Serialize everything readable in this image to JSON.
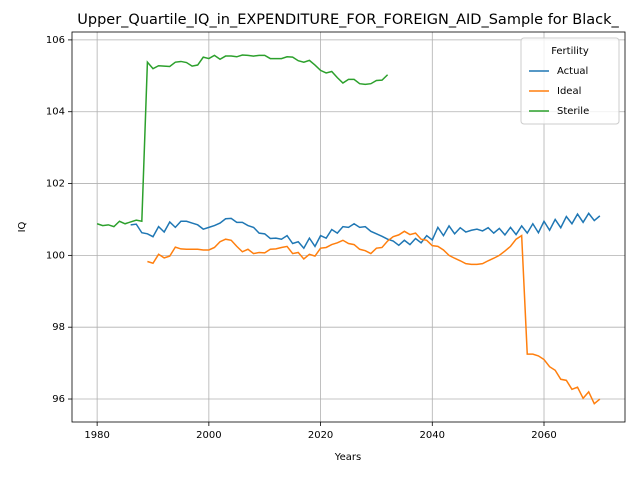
{
  "chart_data": {
    "type": "line",
    "title": "Upper_Quartile_IQ_in_EXPENDITURE_FOR_FOREIGN_AID_Sample for Black_",
    "x_label": "Years",
    "y_label": "IQ",
    "legend_title": "Fertility",
    "legend_position": "upper right",
    "grid": true,
    "xlim": [
      1975.5,
      2074.5
    ],
    "xticks": [
      1980,
      2000,
      2020,
      2040,
      2060
    ],
    "ylim": [
      95.36,
      106.22
    ],
    "yticks": [
      96,
      98,
      100,
      102,
      104,
      106
    ],
    "x": [
      1980,
      1981,
      1982,
      1983,
      1984,
      1985,
      1986,
      1987,
      1988,
      1989,
      1990,
      1991,
      1992,
      1993,
      1994,
      1995,
      1996,
      1997,
      1998,
      1999,
      2000,
      2001,
      2002,
      2003,
      2004,
      2005,
      2006,
      2007,
      2008,
      2009,
      2010,
      2011,
      2012,
      2013,
      2014,
      2015,
      2016,
      2017,
      2018,
      2019,
      2020,
      2021,
      2022,
      2023,
      2024,
      2025,
      2026,
      2027,
      2028,
      2029,
      2030,
      2031,
      2032,
      2033,
      2034,
      2035,
      2036,
      2037,
      2038,
      2039,
      2040,
      2041,
      2042,
      2043,
      2044,
      2045,
      2046,
      2047,
      2048,
      2049,
      2050,
      2051,
      2052,
      2053,
      2054,
      2055,
      2056,
      2057,
      2058,
      2059,
      2060,
      2061,
      2062,
      2063,
      2064,
      2065,
      2066,
      2067,
      2068,
      2069,
      2070
    ],
    "series": [
      {
        "name": "Actual",
        "color": "#1f77b4",
        "values": [
          null,
          null,
          null,
          null,
          null,
          null,
          100.85,
          100.87,
          100.63,
          100.6,
          100.52,
          100.8,
          100.65,
          100.93,
          100.78,
          100.95,
          100.95,
          100.9,
          100.85,
          100.73,
          100.78,
          100.83,
          100.9,
          101.02,
          101.03,
          100.92,
          100.92,
          100.83,
          100.78,
          100.62,
          100.6,
          100.47,
          100.48,
          100.45,
          100.55,
          100.33,
          100.38,
          100.2,
          100.48,
          100.25,
          100.55,
          100.48,
          100.72,
          100.62,
          100.8,
          100.78,
          100.88,
          100.78,
          100.8,
          100.67,
          100.6,
          100.53,
          100.45,
          100.4,
          100.28,
          100.42,
          100.3,
          100.47,
          100.35,
          100.55,
          100.43,
          100.78,
          100.55,
          100.82,
          100.6,
          100.77,
          100.65,
          100.7,
          100.73,
          100.68,
          100.77,
          100.62,
          100.75,
          100.57,
          100.78,
          100.58,
          100.82,
          100.62,
          100.88,
          100.63,
          100.95,
          100.7,
          101.0,
          100.77,
          101.08,
          100.88,
          101.15,
          100.92,
          101.17,
          100.97,
          101.1
        ]
      },
      {
        "name": "Ideal",
        "color": "#ff7f0e",
        "values": [
          null,
          null,
          null,
          null,
          null,
          null,
          null,
          null,
          null,
          99.83,
          99.78,
          100.03,
          99.93,
          99.98,
          100.23,
          100.18,
          100.17,
          100.17,
          100.17,
          100.15,
          100.15,
          100.22,
          100.38,
          100.45,
          100.42,
          100.25,
          100.1,
          100.17,
          100.05,
          100.08,
          100.07,
          100.17,
          100.18,
          100.22,
          100.25,
          100.05,
          100.08,
          99.9,
          100.03,
          99.98,
          100.2,
          100.22,
          100.3,
          100.35,
          100.42,
          100.33,
          100.3,
          100.17,
          100.13,
          100.05,
          100.2,
          100.22,
          100.4,
          100.52,
          100.57,
          100.67,
          100.58,
          100.62,
          100.45,
          100.42,
          100.27,
          100.25,
          100.15,
          100.0,
          99.92,
          99.85,
          99.77,
          99.75,
          99.75,
          99.77,
          99.85,
          99.92,
          100.0,
          100.12,
          100.25,
          100.45,
          100.55,
          97.25,
          97.25,
          97.2,
          97.1,
          96.9,
          96.8,
          96.55,
          96.52,
          96.27,
          96.33,
          96.02,
          96.2,
          95.87,
          96.0
        ]
      },
      {
        "name": "Sterile",
        "color": "#2ca02c",
        "values": [
          100.88,
          100.83,
          100.85,
          100.8,
          100.95,
          100.88,
          100.93,
          100.98,
          100.95,
          105.38,
          105.2,
          105.28,
          105.27,
          105.26,
          105.38,
          105.4,
          105.37,
          105.27,
          105.3,
          105.52,
          105.48,
          105.57,
          105.46,
          105.55,
          105.55,
          105.53,
          105.58,
          105.57,
          105.55,
          105.57,
          105.57,
          105.48,
          105.48,
          105.48,
          105.53,
          105.52,
          105.42,
          105.38,
          105.43,
          105.3,
          105.15,
          105.08,
          105.12,
          104.95,
          104.8,
          104.9,
          104.9,
          104.78,
          104.76,
          104.78,
          104.87,
          104.88,
          105.03,
          null,
          null,
          null,
          null,
          null,
          null,
          null,
          null,
          null,
          null,
          null,
          null,
          null,
          null,
          null,
          null,
          null,
          null,
          null,
          null,
          null,
          null,
          null,
          null,
          null,
          null,
          null,
          null,
          null,
          null,
          null,
          null,
          null,
          null,
          null,
          null,
          null,
          null
        ]
      }
    ]
  }
}
